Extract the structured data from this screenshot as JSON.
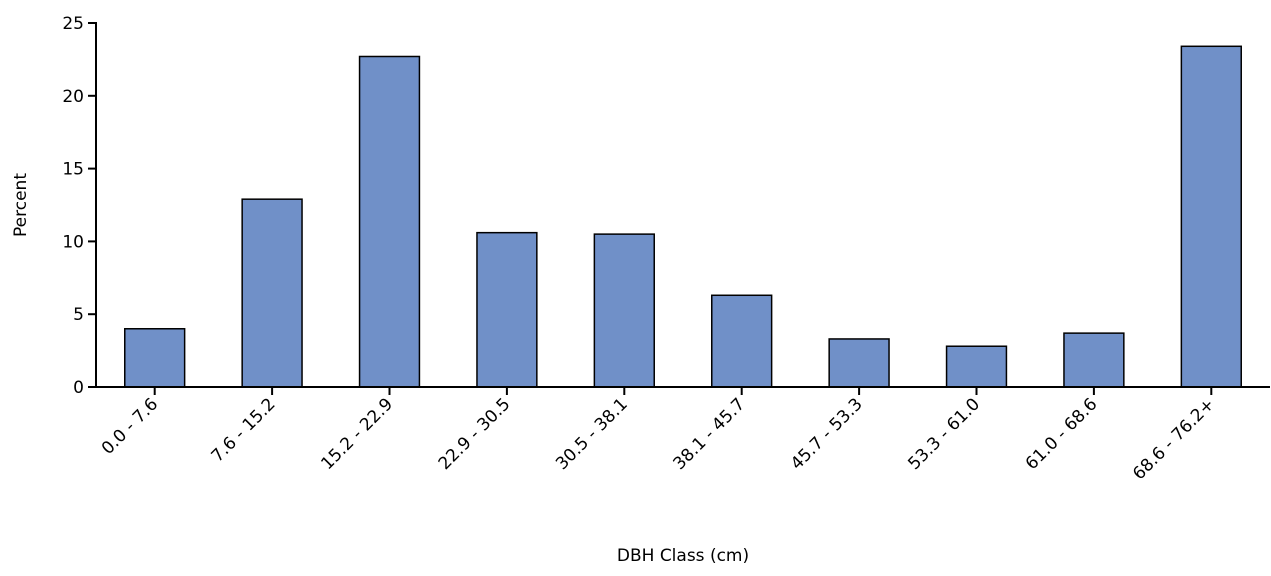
{
  "chart_data": {
    "type": "bar",
    "title": "",
    "xlabel": "DBH Class (cm)",
    "ylabel": "Percent",
    "categories": [
      "0.0 - 7.6",
      "7.6 - 15.2",
      "15.2 - 22.9",
      "22.9 - 30.5",
      "30.5 - 38.1",
      "38.1 - 45.7",
      "45.7 - 53.3",
      "53.3 - 61.0",
      "61.0 - 68.6",
      "68.6 - 76.2+"
    ],
    "values": [
      4.0,
      12.9,
      22.7,
      10.6,
      10.5,
      6.3,
      3.3,
      2.8,
      3.7,
      23.4
    ],
    "ylim": [
      0,
      25
    ],
    "yticks": [
      0,
      5,
      10,
      15,
      20,
      25
    ],
    "grid": false,
    "legend": "none",
    "bar_color": "#7090c8"
  }
}
